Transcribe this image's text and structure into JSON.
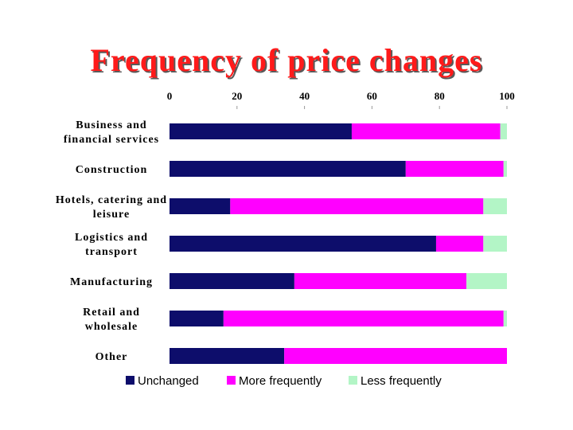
{
  "chart_data": {
    "type": "bar",
    "orientation": "horizontal",
    "stacked": true,
    "title": "Frequency of price changes",
    "xlim": [
      0,
      100
    ],
    "xticks": [
      0,
      20,
      40,
      60,
      80,
      100
    ],
    "categories": [
      [
        "Business and",
        "financial services"
      ],
      [
        "Construction"
      ],
      [
        "Hotels, catering and",
        "leisure"
      ],
      [
        "Logistics and",
        "transport"
      ],
      [
        "Manufacturing"
      ],
      [
        "Retail and",
        "wholesale"
      ],
      [
        "Other"
      ]
    ],
    "series": [
      {
        "name": "Unchanged",
        "color": "#0d0d6b",
        "values": [
          54,
          70,
          18,
          79,
          37,
          16,
          34
        ]
      },
      {
        "name": "More frequently",
        "color": "#ff00ff",
        "values": [
          44,
          29,
          75,
          14,
          51,
          83,
          66
        ]
      },
      {
        "name": "Less frequently",
        "color": "#b3f5c6",
        "values": [
          2,
          1,
          7,
          7,
          12,
          1,
          0
        ]
      }
    ],
    "legend": "bottom",
    "grid": false
  }
}
